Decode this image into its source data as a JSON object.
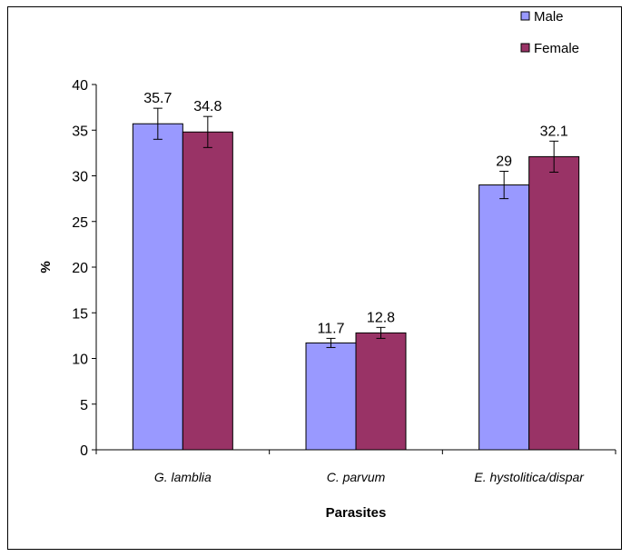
{
  "chart_data": {
    "type": "bar",
    "title": "",
    "xlabel": "Parasites",
    "ylabel": "%",
    "ylim": [
      0,
      40
    ],
    "yticks": [
      0,
      5,
      10,
      15,
      20,
      25,
      30,
      35,
      40
    ],
    "grid": false,
    "legend_position": "top-right",
    "categories": [
      "G. lamblia",
      "C. parvum",
      "E. hystolitica/dispar"
    ],
    "series": [
      {
        "name": "Male",
        "color": "#9999ff",
        "values": [
          35.7,
          11.7,
          29
        ],
        "error": [
          1.7,
          0.5,
          1.5
        ]
      },
      {
        "name": "Female",
        "color": "#993366",
        "values": [
          34.8,
          12.8,
          32.1
        ],
        "error": [
          1.7,
          0.6,
          1.7
        ]
      }
    ]
  }
}
